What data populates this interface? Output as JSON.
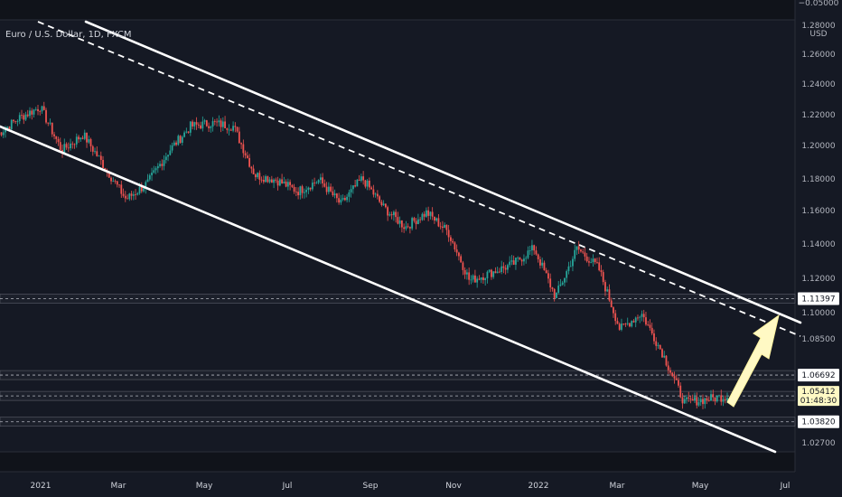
{
  "header": {
    "symbol": "Euro / U.S. Dollar, 1D, FXCM",
    "currency": "USD"
  },
  "chart_data": {
    "type": "candlestick",
    "symbol": "Euro / U.S. Dollar",
    "interval": "1D",
    "source": "FXCM",
    "ylim": [
      1.0197,
      1.2855
    ],
    "y_ticks": [
      "1.28000",
      "1.26000",
      "1.24000",
      "1.22000",
      "1.20000",
      "1.18000",
      "1.16000",
      "1.14000",
      "1.12000",
      "1.10000",
      "1.08500",
      "1.02700"
    ],
    "y_top_partial": "−0.05000",
    "x_ticks": [
      "2021",
      "Mar",
      "May",
      "Jul",
      "Sep",
      "Nov",
      "2022",
      "Mar",
      "May",
      "Jul"
    ],
    "price_labels": [
      {
        "text": "1.11397",
        "value": 1.11397,
        "style": "light"
      },
      {
        "text": "1.06692",
        "value": 1.06692,
        "style": "light"
      },
      {
        "text": "1.05412",
        "value": 1.05412,
        "style": "current",
        "countdown": "01:48:30"
      },
      {
        "text": "1.03820",
        "value": 1.0382,
        "style": "light"
      }
    ],
    "horizontal_levels": [
      1.11397,
      1.06692,
      1.05412,
      1.0382
    ],
    "anchors": [
      {
        "date": "2021-01",
        "price": 1.215
      },
      {
        "date": "2021-01",
        "price": 1.225
      },
      {
        "date": "2021-01",
        "price": 1.232
      },
      {
        "date": "2021-02",
        "price": 1.205
      },
      {
        "date": "2021-02",
        "price": 1.215
      },
      {
        "date": "2021-03",
        "price": 1.195
      },
      {
        "date": "2021-03",
        "price": 1.175
      },
      {
        "date": "2021-04",
        "price": 1.185
      },
      {
        "date": "2021-04",
        "price": 1.205
      },
      {
        "date": "2021-05",
        "price": 1.22
      },
      {
        "date": "2021-05",
        "price": 1.222
      },
      {
        "date": "2021-06",
        "price": 1.22
      },
      {
        "date": "2021-06",
        "price": 1.19
      },
      {
        "date": "2021-07",
        "price": 1.187
      },
      {
        "date": "2021-07",
        "price": 1.18
      },
      {
        "date": "2021-08",
        "price": 1.187
      },
      {
        "date": "2021-08",
        "price": 1.172
      },
      {
        "date": "2021-09",
        "price": 1.188
      },
      {
        "date": "2021-09",
        "price": 1.17
      },
      {
        "date": "2021-10",
        "price": 1.158
      },
      {
        "date": "2021-10",
        "price": 1.167
      },
      {
        "date": "2021-11",
        "price": 1.155
      },
      {
        "date": "2021-11",
        "price": 1.125
      },
      {
        "date": "2021-12",
        "price": 1.13
      },
      {
        "date": "2021-12",
        "price": 1.135
      },
      {
        "date": "2022-01",
        "price": 1.145
      },
      {
        "date": "2022-01",
        "price": 1.115
      },
      {
        "date": "2022-02",
        "price": 1.145
      },
      {
        "date": "2022-02",
        "price": 1.133
      },
      {
        "date": "2022-03",
        "price": 1.095
      },
      {
        "date": "2022-03",
        "price": 1.105
      },
      {
        "date": "2022-04",
        "price": 1.08
      },
      {
        "date": "2022-04",
        "price": 1.05
      },
      {
        "date": "2022-05",
        "price": 1.052
      },
      {
        "date": "2022-05",
        "price": 1.054
      }
    ],
    "annotations": {
      "channel_upper": {
        "style": "solid",
        "color": "#ffffff"
      },
      "channel_lower": {
        "style": "solid",
        "color": "#ffffff"
      },
      "midline": {
        "style": "dashed",
        "color": "#ffffff"
      },
      "arrow": {
        "direction": "up",
        "color": "#fff9c4"
      }
    },
    "colors": {
      "background": "#151924",
      "up": "#26a69a",
      "down": "#ef5350",
      "text": "#b2b5be"
    },
    "grid": false
  }
}
